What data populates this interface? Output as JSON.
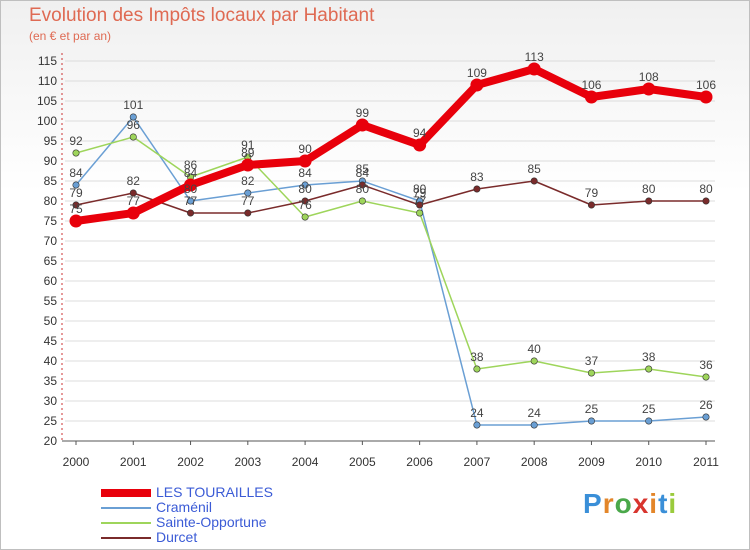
{
  "title": "Evolution des Impôts locaux par Habitant",
  "subtitle": "(en € et par an)",
  "logo_text": "Proxiti",
  "chart_data": {
    "type": "line",
    "title": "Evolution des Impôts locaux par Habitant",
    "subtitle": "(en € et par an)",
    "xlabel": "",
    "ylabel": "",
    "x": [
      "2000",
      "2001",
      "2002",
      "2003",
      "2004",
      "2005",
      "2006",
      "2007",
      "2008",
      "2009",
      "2010",
      "2011"
    ],
    "y_ticks": [
      20,
      25,
      30,
      35,
      40,
      45,
      50,
      55,
      60,
      65,
      70,
      75,
      80,
      85,
      90,
      95,
      100,
      105,
      110,
      115
    ],
    "ylim": [
      20,
      115
    ],
    "grid": true,
    "legend_position": "bottom-left",
    "series": [
      {
        "name": "LES TOURAILLES",
        "color": "#e8000b",
        "emphasis": true,
        "values": [
          75,
          77,
          84,
          89,
          90,
          99,
          94,
          109,
          113,
          106,
          108,
          106
        ]
      },
      {
        "name": "Craménil",
        "color": "#6a9fd4",
        "emphasis": false,
        "values": [
          84,
          101,
          80,
          82,
          84,
          85,
          80,
          24,
          24,
          25,
          25,
          26
        ]
      },
      {
        "name": "Sainte-Opportune",
        "color": "#9ed55b",
        "emphasis": false,
        "values": [
          92,
          96,
          86,
          91,
          76,
          80,
          77,
          38,
          40,
          37,
          38,
          36
        ]
      },
      {
        "name": "Durcet",
        "color": "#7a2b2b",
        "emphasis": false,
        "values": [
          79,
          82,
          77,
          77,
          80,
          84,
          79,
          83,
          85,
          79,
          80,
          80
        ]
      }
    ]
  }
}
